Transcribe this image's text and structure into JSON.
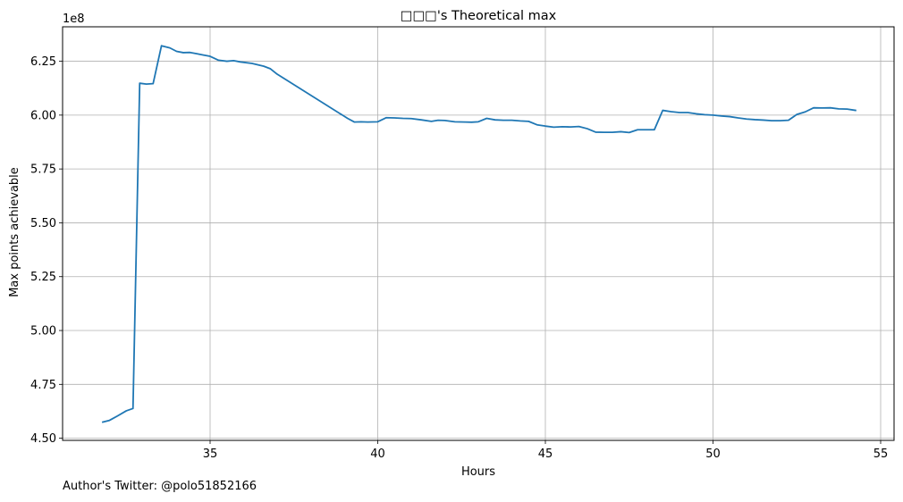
{
  "chart_data": {
    "type": "line",
    "title": "□□□'s Theoretical max",
    "xlabel": "Hours",
    "ylabel": "Max points achievable",
    "offset_label": "1e8",
    "xlim": [
      30.6,
      55.4
    ],
    "ylim": [
      4.49,
      6.41
    ],
    "x_ticks": [
      35,
      40,
      45,
      50,
      55
    ],
    "x_tick_labels": [
      "35",
      "40",
      "45",
      "50",
      "55"
    ],
    "y_ticks": [
      4.5,
      4.75,
      5.0,
      5.25,
      5.5,
      5.75,
      6.0,
      6.25
    ],
    "y_tick_labels": [
      "4.50",
      "4.75",
      "5.00",
      "5.25",
      "5.50",
      "5.75",
      "6.00",
      "6.25"
    ],
    "grid": true,
    "series": [
      {
        "color": "#1f77b4",
        "x": [
          31.8,
          32.0,
          32.2,
          32.5,
          32.7,
          32.9,
          33.1,
          33.3,
          33.55,
          33.8,
          34.0,
          34.2,
          34.4,
          34.6,
          34.8,
          35.0,
          35.25,
          35.5,
          35.7,
          35.9,
          36.25,
          36.6,
          36.8,
          37.0,
          39.1,
          39.3,
          39.5,
          39.7,
          40.0,
          40.25,
          40.5,
          40.75,
          41.0,
          41.3,
          41.6,
          41.8,
          42.0,
          42.3,
          42.6,
          42.8,
          43.0,
          43.25,
          43.5,
          43.75,
          44.0,
          44.25,
          44.5,
          44.75,
          45.0,
          45.25,
          45.5,
          45.75,
          46.0,
          46.25,
          46.5,
          46.75,
          47.0,
          47.25,
          47.5,
          47.75,
          48.0,
          48.25,
          48.5,
          48.75,
          49.0,
          49.25,
          49.5,
          49.75,
          50.0,
          50.25,
          50.5,
          50.75,
          51.0,
          51.25,
          51.5,
          51.75,
          52.0,
          52.25,
          52.5,
          52.75,
          53.0,
          53.25,
          53.5,
          53.75,
          54.0,
          54.25
        ],
        "y": [
          4.575,
          4.583,
          4.6,
          4.627,
          4.638,
          6.148,
          6.144,
          6.146,
          6.322,
          6.312,
          6.296,
          6.29,
          6.291,
          6.285,
          6.279,
          6.273,
          6.255,
          6.25,
          6.253,
          6.247,
          6.24,
          6.227,
          6.215,
          6.19,
          5.985,
          5.968,
          5.969,
          5.968,
          5.969,
          5.988,
          5.987,
          5.985,
          5.984,
          5.978,
          5.971,
          5.976,
          5.975,
          5.969,
          5.968,
          5.967,
          5.969,
          5.985,
          5.978,
          5.976,
          5.976,
          5.973,
          5.971,
          5.955,
          5.949,
          5.944,
          5.946,
          5.945,
          5.947,
          5.937,
          5.921,
          5.92,
          5.92,
          5.923,
          5.919,
          5.932,
          5.932,
          5.932,
          6.022,
          6.016,
          6.012,
          6.012,
          6.006,
          6.002,
          6.0,
          5.996,
          5.993,
          5.987,
          5.982,
          5.979,
          5.977,
          5.974,
          5.974,
          5.976,
          6.003,
          6.015,
          6.034,
          6.033,
          6.034,
          6.029,
          6.028,
          6.022
        ]
      }
    ]
  },
  "footer": {
    "text": "Author's Twitter: @polo51852166"
  }
}
